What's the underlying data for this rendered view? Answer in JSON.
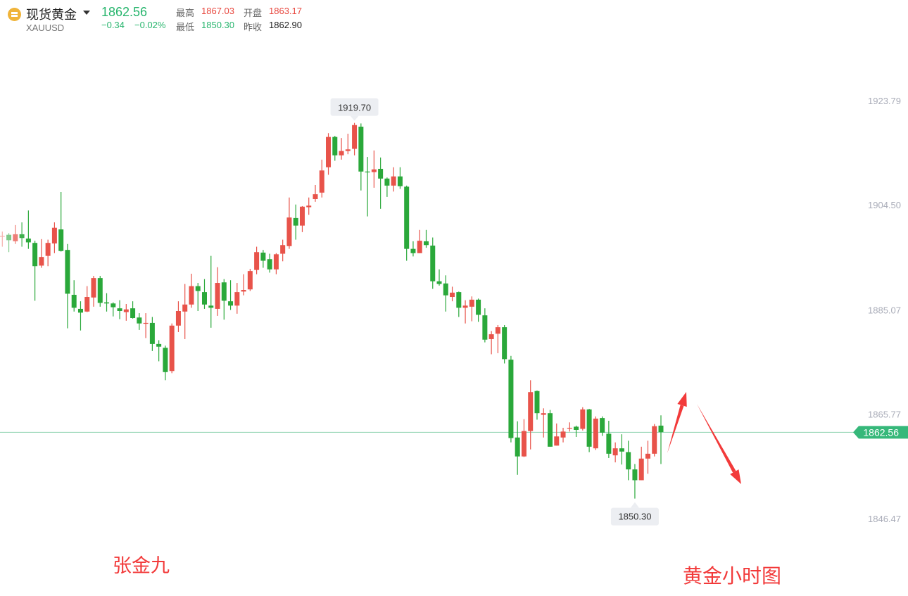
{
  "header": {
    "title": "现货黄金",
    "symbol": "XAUUSD",
    "price": "1862.56",
    "change": "−0.34",
    "change_pct": "−0.02%",
    "high_label": "最高",
    "high": "1867.03",
    "open_label": "开盘",
    "open": "1863.17",
    "low_label": "最低",
    "low": "1850.30",
    "prev_close_label": "昨收",
    "prev_close": "1862.90"
  },
  "annotations": {
    "author": "张金九",
    "caption": "黄金小时图"
  },
  "colors": {
    "up": "#e8534a",
    "down": "#2aa83a",
    "price_line": "#8fd3b0",
    "price_badge": "#36b87a",
    "annotation": "#f23a3a"
  },
  "chart_data": {
    "type": "candlestick",
    "color_convention": "red = up, green = down",
    "y_ticks": [
      "1923.79",
      "1904.50",
      "1885.07",
      "1865.77",
      "1846.47"
    ],
    "ylim": [
      1846.47,
      1923.79
    ],
    "current_price": "1862.56",
    "max_label": "1919.70",
    "min_label": "1850.30",
    "ohlc_fields": [
      "open",
      "high",
      "low",
      "close"
    ],
    "candles": [
      [
        1898.8,
        1899.7,
        1896.9,
        1898.9
      ],
      [
        1899.1,
        1899.4,
        1895.9,
        1898.1
      ],
      [
        1897.9,
        1900.9,
        1897.4,
        1899.2
      ],
      [
        1899.2,
        1901.4,
        1896.9,
        1898.5
      ],
      [
        1898.4,
        1903.6,
        1896.5,
        1897.7
      ],
      [
        1897.6,
        1898.0,
        1886.9,
        1893.3
      ],
      [
        1893.4,
        1898.3,
        1893.0,
        1895.0
      ],
      [
        1895.2,
        1898.2,
        1893.3,
        1897.6
      ],
      [
        1897.5,
        1901.4,
        1895.7,
        1900.4
      ],
      [
        1900.1,
        1907.0,
        1896.0,
        1896.1
      ],
      [
        1896.3,
        1897.4,
        1881.8,
        1888.2
      ],
      [
        1888.0,
        1890.7,
        1884.9,
        1885.6
      ],
      [
        1885.4,
        1886.8,
        1881.4,
        1884.7
      ],
      [
        1884.9,
        1889.6,
        1884.8,
        1887.6
      ],
      [
        1887.5,
        1891.5,
        1885.8,
        1891.1
      ],
      [
        1891.1,
        1891.5,
        1885.8,
        1886.5
      ],
      [
        1886.6,
        1888.3,
        1884.9,
        1886.4
      ],
      [
        1886.4,
        1886.6,
        1884.0,
        1885.7
      ],
      [
        1885.5,
        1887.0,
        1883.5,
        1885.0
      ],
      [
        1884.8,
        1886.3,
        1883.2,
        1885.3
      ],
      [
        1885.5,
        1886.8,
        1883.6,
        1883.7
      ],
      [
        1883.8,
        1884.6,
        1881.5,
        1882.7
      ],
      [
        1882.7,
        1884.6,
        1880.0,
        1882.8
      ],
      [
        1882.8,
        1883.9,
        1877.6,
        1878.9
      ],
      [
        1878.9,
        1879.6,
        1875.7,
        1878.4
      ],
      [
        1878.2,
        1878.6,
        1872.2,
        1873.7
      ],
      [
        1873.9,
        1882.7,
        1873.5,
        1882.3
      ],
      [
        1882.3,
        1886.8,
        1881.1,
        1885.0
      ],
      [
        1884.9,
        1890.0,
        1879.8,
        1886.2
      ],
      [
        1886.2,
        1891.9,
        1885.6,
        1889.6
      ],
      [
        1889.6,
        1890.2,
        1885.0,
        1888.7
      ],
      [
        1888.5,
        1890.9,
        1885.4,
        1886.2
      ],
      [
        1886.0,
        1895.2,
        1881.9,
        1885.6
      ],
      [
        1885.4,
        1893.1,
        1884.1,
        1890.2
      ],
      [
        1890.3,
        1890.9,
        1883.4,
        1886.9
      ],
      [
        1886.8,
        1890.7,
        1885.2,
        1886.0
      ],
      [
        1886.0,
        1890.2,
        1884.5,
        1888.5
      ],
      [
        1888.6,
        1891.8,
        1887.9,
        1888.9
      ],
      [
        1889.0,
        1892.8,
        1888.7,
        1892.4
      ],
      [
        1892.6,
        1896.9,
        1891.8,
        1895.9
      ],
      [
        1895.8,
        1896.3,
        1893.0,
        1894.3
      ],
      [
        1894.6,
        1895.6,
        1892.1,
        1892.7
      ],
      [
        1892.7,
        1895.7,
        1891.8,
        1895.5
      ],
      [
        1895.6,
        1898.2,
        1894.2,
        1897.2
      ],
      [
        1897.0,
        1906.0,
        1896.5,
        1902.3
      ],
      [
        1902.2,
        1904.7,
        1898.2,
        1900.8
      ],
      [
        1900.8,
        1904.4,
        1899.6,
        1904.3
      ],
      [
        1904.2,
        1906.0,
        1902.8,
        1904.5
      ],
      [
        1905.7,
        1908.3,
        1905.2,
        1906.6
      ],
      [
        1906.9,
        1913.0,
        1906.0,
        1911.0
      ],
      [
        1911.6,
        1917.9,
        1910.2,
        1917.2
      ],
      [
        1917.2,
        1917.4,
        1912.8,
        1913.8
      ],
      [
        1913.8,
        1917.0,
        1913.0,
        1914.6
      ],
      [
        1914.6,
        1917.8,
        1914.0,
        1914.9
      ],
      [
        1915.0,
        1919.8,
        1913.8,
        1919.4
      ],
      [
        1919.1,
        1919.7,
        1907.3,
        1910.8
      ],
      [
        1910.8,
        1913.5,
        1902.5,
        1910.7
      ],
      [
        1910.7,
        1914.7,
        1907.8,
        1911.2
      ],
      [
        1911.3,
        1913.4,
        1903.9,
        1909.5
      ],
      [
        1909.5,
        1909.7,
        1906.1,
        1908.2
      ],
      [
        1908.2,
        1911.6,
        1907.1,
        1909.9
      ],
      [
        1909.9,
        1911.6,
        1907.6,
        1908.1
      ],
      [
        1908.0,
        1908.2,
        1894.3,
        1896.5
      ],
      [
        1896.5,
        1897.9,
        1895.1,
        1895.7
      ],
      [
        1895.7,
        1900.0,
        1895.7,
        1898.0
      ],
      [
        1897.9,
        1900.0,
        1896.7,
        1897.2
      ],
      [
        1897.1,
        1898.6,
        1889.1,
        1890.5
      ],
      [
        1890.5,
        1892.7,
        1889.7,
        1890.0
      ],
      [
        1890.1,
        1891.6,
        1884.9,
        1887.9
      ],
      [
        1887.6,
        1889.5,
        1886.8,
        1888.4
      ],
      [
        1888.5,
        1888.6,
        1883.9,
        1885.6
      ],
      [
        1885.6,
        1887.0,
        1882.7,
        1886.0
      ],
      [
        1885.8,
        1887.7,
        1883.1,
        1887.1
      ],
      [
        1887.1,
        1887.3,
        1883.0,
        1884.3
      ],
      [
        1884.2,
        1885.5,
        1879.2,
        1879.7
      ],
      [
        1879.8,
        1881.3,
        1877.0,
        1880.7
      ],
      [
        1880.8,
        1882.4,
        1877.2,
        1882.0
      ],
      [
        1882.0,
        1882.4,
        1875.3,
        1876.1
      ],
      [
        1876.0,
        1876.7,
        1860.7,
        1861.5
      ],
      [
        1861.6,
        1864.6,
        1854.7,
        1858.1
      ],
      [
        1858.1,
        1865.0,
        1858.0,
        1862.8
      ],
      [
        1862.8,
        1872.2,
        1859.4,
        1870.0
      ],
      [
        1870.2,
        1870.3,
        1864.9,
        1866.1
      ],
      [
        1865.8,
        1867.0,
        1861.6,
        1866.1
      ],
      [
        1866.1,
        1866.7,
        1859.9,
        1859.9
      ],
      [
        1860.1,
        1864.2,
        1860.1,
        1861.8
      ],
      [
        1861.6,
        1863.4,
        1860.7,
        1862.7
      ],
      [
        1863.3,
        1864.4,
        1862.7,
        1863.4
      ],
      [
        1863.6,
        1863.8,
        1861.7,
        1863.0
      ],
      [
        1863.2,
        1867.2,
        1862.9,
        1866.8
      ],
      [
        1866.8,
        1866.9,
        1858.9,
        1859.9
      ],
      [
        1859.6,
        1865.5,
        1859.3,
        1865.1
      ],
      [
        1865.2,
        1865.5,
        1861.9,
        1862.5
      ],
      [
        1862.3,
        1864.7,
        1857.8,
        1858.6
      ],
      [
        1858.3,
        1860.7,
        1857.0,
        1859.6
      ],
      [
        1859.6,
        1862.2,
        1856.6,
        1859.0
      ],
      [
        1858.9,
        1861.0,
        1853.7,
        1855.7
      ],
      [
        1855.7,
        1856.7,
        1850.3,
        1853.7
      ],
      [
        1853.7,
        1859.9,
        1853.7,
        1857.7
      ],
      [
        1857.7,
        1861.0,
        1854.9,
        1858.6
      ],
      [
        1858.6,
        1864.1,
        1858.1,
        1863.7
      ],
      [
        1863.8,
        1865.7,
        1856.7,
        1862.6
      ]
    ]
  }
}
